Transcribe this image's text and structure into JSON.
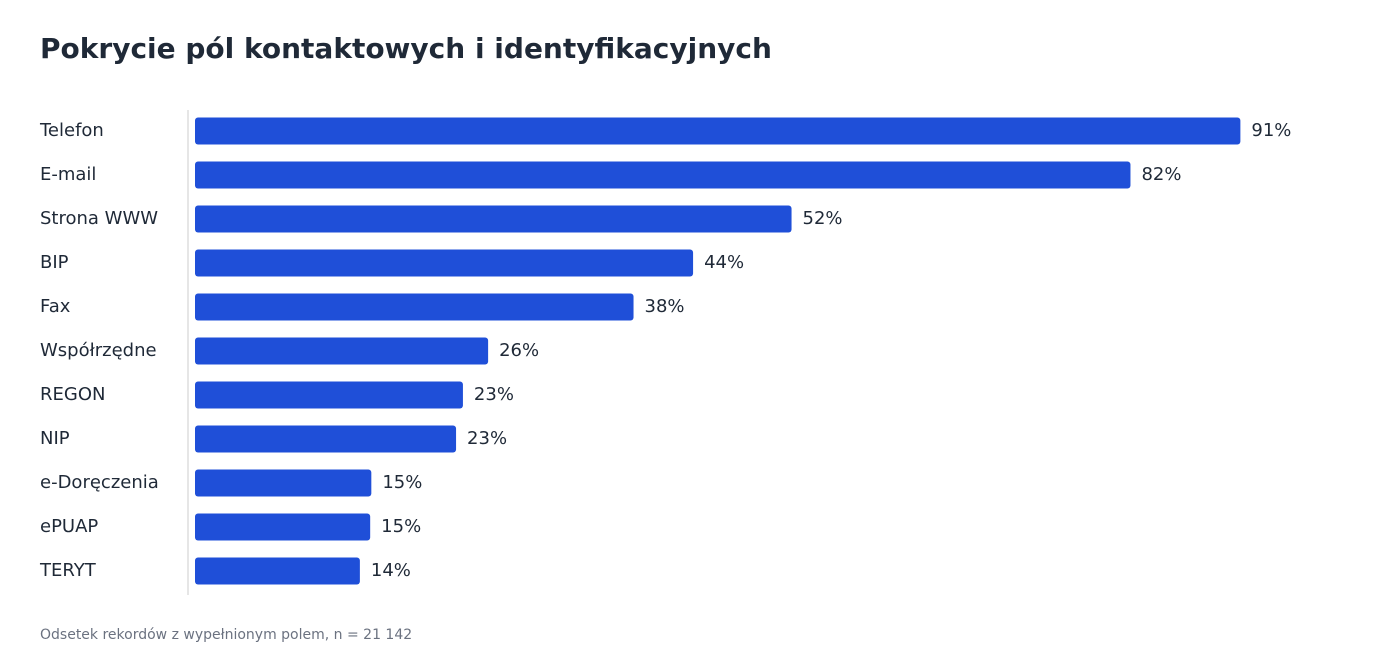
{
  "chart_data": {
    "type": "bar",
    "orientation": "horizontal",
    "title": "Pokrycie pól kontaktowych i identyfikacyjnych",
    "footnote": "Odsetek rekordów z wypełnionym polem, n = 21 142",
    "categories": [
      "Telefon",
      "E-mail",
      "Strona WWW",
      "BIP",
      "Fax",
      "Współrzędne",
      "REGON",
      "NIP",
      "e-Doręczenia",
      "ePUAP",
      "TERYT"
    ],
    "values": [
      91.3,
      81.7,
      52.1,
      43.5,
      38.3,
      25.6,
      23.4,
      22.8,
      15.4,
      15.3,
      14.4
    ],
    "value_labels": [
      "91%",
      "82%",
      "52%",
      "44%",
      "38%",
      "26%",
      "23%",
      "23%",
      "15%",
      "15%",
      "14%"
    ],
    "color": "#1f4fd8",
    "xlim": [
      0,
      100
    ]
  }
}
